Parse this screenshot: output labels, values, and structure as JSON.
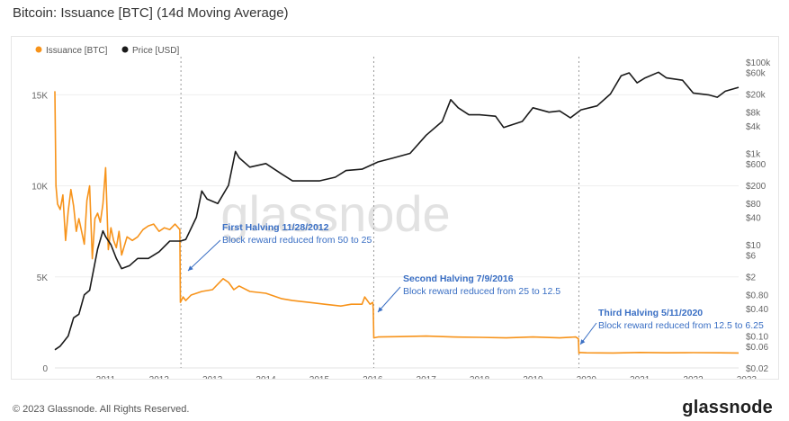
{
  "header": {
    "title": "Bitcoin: Issuance [BTC] (14d Moving Average)"
  },
  "watermark": "glassnode",
  "footer": {
    "copyright": "© 2023 Glassnode. All Rights Reserved.",
    "logo": "glassnode"
  },
  "colors": {
    "issuance": "#f7931a",
    "price": "#1a1a1a",
    "annotation": "#3a6fc4",
    "grid": "#eeeeee",
    "watermark": "#e2e2e2"
  },
  "chart_data": {
    "type": "line",
    "title": "Bitcoin: Issuance [BTC] (14d Moving Average)",
    "xlabel": "",
    "ylabel": "",
    "x_ticks": [
      "2011",
      "2012",
      "2013",
      "2014",
      "2015",
      "2016",
      "2017",
      "2018",
      "2019",
      "2020",
      "2021",
      "2022",
      "2023"
    ],
    "xlim": [
      2010.55,
      2023.35
    ],
    "y_left": {
      "ticks": [
        "0",
        "5K",
        "10K",
        "15K"
      ],
      "tick_values": [
        0,
        5000,
        10000,
        15000
      ],
      "ylim": [
        0,
        16800
      ]
    },
    "y_right": {
      "scale": "log",
      "ticks": [
        "$100k",
        "$60k",
        "$20k",
        "$8k",
        "$4k",
        "$1k",
        "$600",
        "$200",
        "$80",
        "$40",
        "$10",
        "$6",
        "$2",
        "$0.80",
        "$0.40",
        "$0.10",
        "$0.06",
        "$0.02"
      ],
      "tick_values": [
        100000,
        60000,
        20000,
        8000,
        4000,
        1000,
        600,
        200,
        80,
        40,
        10,
        6,
        2,
        0.8,
        0.4,
        0.1,
        0.06,
        0.02
      ],
      "ylim": [
        0.02,
        100000
      ]
    },
    "legend": {
      "placement": "top-left",
      "entries": [
        "Issuance [BTC]",
        "Price [USD]"
      ]
    },
    "series": [
      {
        "name": "Issuance [BTC]",
        "axis": "left",
        "x": [
          2010.55,
          2010.57,
          2010.6,
          2010.65,
          2010.7,
          2010.75,
          2010.8,
          2010.85,
          2010.9,
          2010.95,
          2011.0,
          2011.05,
          2011.1,
          2011.15,
          2011.2,
          2011.25,
          2011.3,
          2011.35,
          2011.4,
          2011.45,
          2011.5,
          2011.55,
          2011.6,
          2011.65,
          2011.7,
          2011.75,
          2011.8,
          2011.9,
          2012.0,
          2012.1,
          2012.2,
          2012.3,
          2012.4,
          2012.5,
          2012.6,
          2012.7,
          2012.8,
          2012.89,
          2012.9,
          2012.95,
          2013.0,
          2013.1,
          2013.3,
          2013.5,
          2013.7,
          2013.8,
          2013.9,
          2014.0,
          2014.2,
          2014.5,
          2014.8,
          2015.0,
          2015.3,
          2015.6,
          2015.9,
          2016.1,
          2016.3,
          2016.35,
          2016.45,
          2016.5,
          2016.51,
          2016.52,
          2016.6,
          2017.0,
          2017.5,
          2018.0,
          2018.5,
          2019.0,
          2019.5,
          2020.0,
          2020.3,
          2020.35,
          2020.36,
          2020.37,
          2020.5,
          2021.0,
          2021.5,
          2022.0,
          2022.5,
          2023.0,
          2023.35
        ],
        "values": [
          15200,
          10000,
          9000,
          8700,
          9500,
          7000,
          8600,
          9800,
          8900,
          7500,
          8200,
          7500,
          6800,
          9200,
          10000,
          6000,
          8200,
          8500,
          8000,
          9000,
          11000,
          6500,
          7700,
          7000,
          6600,
          7500,
          6200,
          7200,
          7000,
          7200,
          7600,
          7800,
          7900,
          7500,
          7700,
          7600,
          7900,
          7600,
          3600,
          3900,
          3700,
          4000,
          4200,
          4300,
          4900,
          4700,
          4300,
          4500,
          4200,
          4100,
          3800,
          3700,
          3600,
          3500,
          3400,
          3500,
          3500,
          3900,
          3500,
          3600,
          3200,
          1650,
          1700,
          1720,
          1750,
          1700,
          1680,
          1650,
          1700,
          1650,
          1700,
          1600,
          800,
          850,
          830,
          820,
          850,
          830,
          840,
          830,
          820
        ]
      },
      {
        "name": "Price [USD]",
        "axis": "right",
        "x": [
          2010.55,
          2010.65,
          2010.8,
          2010.9,
          2011.0,
          2011.1,
          2011.2,
          2011.35,
          2011.45,
          2011.5,
          2011.6,
          2011.7,
          2011.8,
          2011.95,
          2012.1,
          2012.3,
          2012.5,
          2012.7,
          2012.9,
          2013.0,
          2013.2,
          2013.3,
          2013.4,
          2013.6,
          2013.8,
          2013.93,
          2014.0,
          2014.2,
          2014.5,
          2014.8,
          2015.0,
          2015.2,
          2015.5,
          2015.8,
          2016.0,
          2016.3,
          2016.6,
          2016.9,
          2017.2,
          2017.5,
          2017.8,
          2017.96,
          2018.1,
          2018.3,
          2018.5,
          2018.8,
          2018.95,
          2019.3,
          2019.5,
          2019.8,
          2020.0,
          2020.2,
          2020.4,
          2020.7,
          2020.95,
          2021.15,
          2021.3,
          2021.45,
          2021.6,
          2021.85,
          2022.0,
          2022.3,
          2022.5,
          2022.8,
          2022.95,
          2023.1,
          2023.35
        ],
        "values": [
          0.05,
          0.06,
          0.1,
          0.25,
          0.3,
          0.8,
          1.0,
          8,
          20,
          15,
          10,
          5,
          3,
          3.5,
          5,
          5,
          7,
          12,
          12,
          13,
          40,
          150,
          100,
          80,
          200,
          1100,
          800,
          500,
          600,
          350,
          250,
          250,
          250,
          300,
          420,
          450,
          650,
          800,
          1000,
          2500,
          5000,
          15000,
          10000,
          7000,
          7000,
          6500,
          3700,
          5000,
          10000,
          8000,
          8500,
          6000,
          9000,
          11000,
          20000,
          50000,
          58000,
          35000,
          45000,
          60000,
          45000,
          40000,
          21000,
          19000,
          17000,
          23000,
          28000
        ]
      }
    ],
    "vertical_markers": [
      2012.91,
      2016.52,
      2020.36
    ],
    "annotations": [
      {
        "title": "First Halving 11/28/2012",
        "text": "Block reward reduced from 50 to 25",
        "x": 2012.91
      },
      {
        "title": "Second Halving 7/9/2016",
        "text": "Block reward reduced from 25 to 12.5",
        "x": 2016.52
      },
      {
        "title": "Third Halving 5/11/2020",
        "text": "Block reward reduced from 12.5 to 6.25",
        "x": 2020.36
      }
    ]
  }
}
